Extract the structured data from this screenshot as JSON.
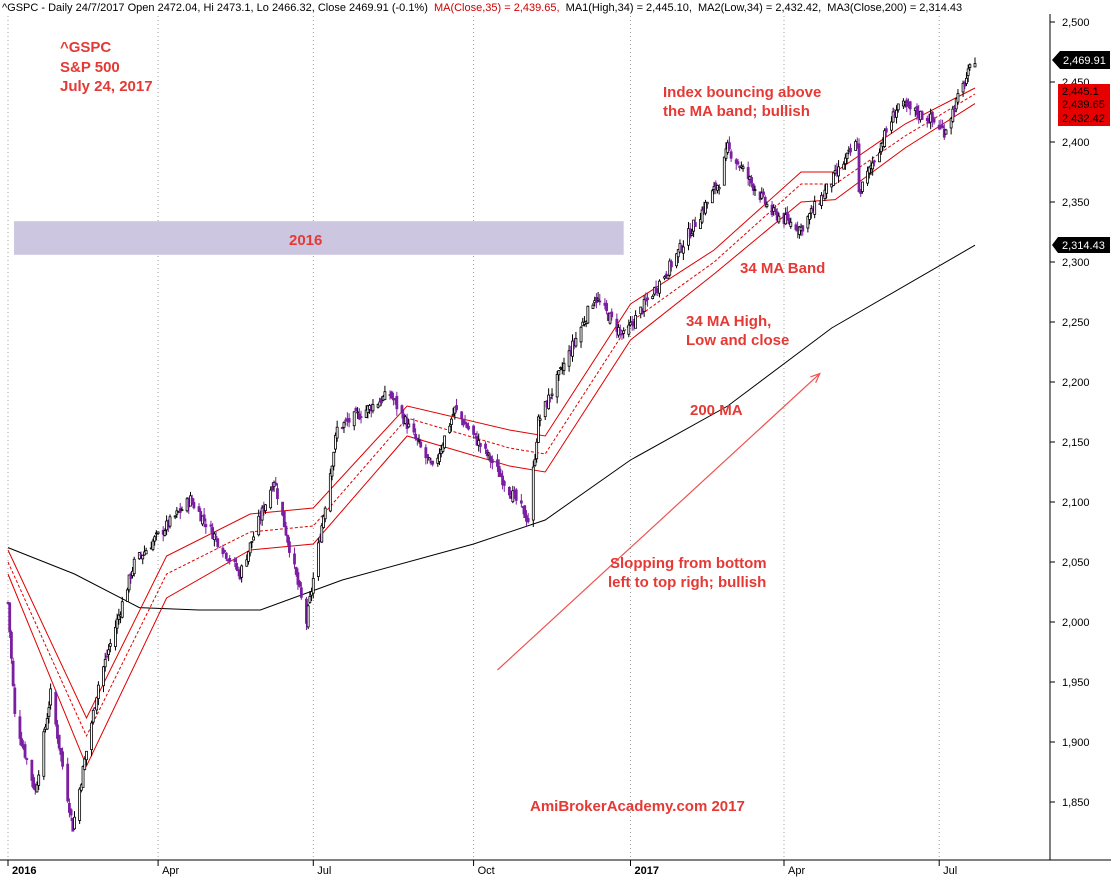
{
  "header": {
    "prefix": "^GSPC - Daily 24/7/2017 Open 2472.04, Hi 2473.1, Lo 2466.32, Close 2469.91 (-0.1%)",
    "ma": "MA(Close,35) = 2,439.65,",
    "ma1": "MA1(High,34) = 2,445.10,",
    "ma2": "MA2(Low,34) = 2,432.42,",
    "ma3": "MA3(Close,200) = 2,314.43"
  },
  "title_block": {
    "symbol": "^GSPC",
    "name": "S&P 500",
    "date": "July 24, 2017"
  },
  "annotations": {
    "bouncing_1": "Index bouncing above",
    "bouncing_2": "the MA band; bullish",
    "year_2016": "2016",
    "ma_band": "34 MA Band",
    "ma_hlc_1": "34 MA High,",
    "ma_hlc_2": "Low and close",
    "ma200": "200 MA",
    "slope_1": "Slopping from bottom",
    "slope_2": "left to top righ; bullish",
    "watermark": "AmiBrokerAcademy.com   2017"
  },
  "price_labels": {
    "last": "2,469.91",
    "high_ma": "2,445.1",
    "close_ma": "2,439.65",
    "low_ma": "2,432.42",
    "ma200": "2,314.43"
  },
  "colors": {
    "up_candle": "#000000",
    "down_candle": "#7b1fa2",
    "ma_band": "#e00000",
    "ma200": "#000000",
    "annotation": "#e53935",
    "highlight_box": "#cdc6e0",
    "price_label_red": "#e60000"
  },
  "chart_data": {
    "type": "candlestick",
    "x_ticks": [
      "2016",
      "Apr",
      "Jul",
      "Oct",
      "2017",
      "Apr",
      "Jul"
    ],
    "y_ticks": [
      "1,850",
      "1,900",
      "1,950",
      "2,000",
      "2,050",
      "2,100",
      "2,150",
      "2,200",
      "2,250",
      "2,300",
      "2,350",
      "2,400",
      "2,450",
      "2,500"
    ],
    "ylim": [
      1805,
      2510
    ],
    "x_range": [
      "2016-01-04",
      "2017-07-24"
    ],
    "grid": "vertical-dotted",
    "close_path": [
      [
        "2016-01-04",
        2016
      ],
      [
        "2016-01-08",
        1922
      ],
      [
        "2016-01-20",
        1859
      ],
      [
        "2016-01-29",
        1940
      ],
      [
        "2016-02-11",
        1829
      ],
      [
        "2016-02-26",
        1948
      ],
      [
        "2016-03-18",
        2049
      ],
      [
        "2016-04-01",
        2072
      ],
      [
        "2016-04-20",
        2102
      ],
      [
        "2016-05-19",
        2040
      ],
      [
        "2016-06-08",
        2119
      ],
      [
        "2016-06-27",
        2000
      ],
      [
        "2016-07-15",
        2161
      ],
      [
        "2016-08-15",
        2190
      ],
      [
        "2016-09-09",
        2127
      ],
      [
        "2016-09-22",
        2177
      ],
      [
        "2016-10-14",
        2133
      ],
      [
        "2016-11-04",
        2085
      ],
      [
        "2016-11-10",
        2167
      ],
      [
        "2016-12-13",
        2271
      ],
      [
        "2016-12-30",
        2238
      ],
      [
        "2017-01-26",
        2296
      ],
      [
        "2017-02-24",
        2367
      ],
      [
        "2017-03-01",
        2395
      ],
      [
        "2017-03-27",
        2341
      ],
      [
        "2017-04-13",
        2328
      ],
      [
        "2017-05-16",
        2400
      ],
      [
        "2017-05-17",
        2357
      ],
      [
        "2017-06-09",
        2431
      ],
      [
        "2017-06-28",
        2419
      ],
      [
        "2017-07-06",
        2409
      ],
      [
        "2017-07-24",
        2470
      ]
    ],
    "ma_close_35_path": [
      [
        "2016-01-04",
        2050
      ],
      [
        "2016-02-19",
        1905
      ],
      [
        "2016-04-06",
        2040
      ],
      [
        "2016-05-25",
        2075
      ],
      [
        "2016-07-01",
        2080
      ],
      [
        "2016-08-25",
        2170
      ],
      [
        "2016-10-24",
        2145
      ],
      [
        "2016-11-14",
        2140
      ],
      [
        "2017-01-03",
        2250
      ],
      [
        "2017-02-21",
        2300
      ],
      [
        "2017-04-13",
        2365
      ],
      [
        "2017-05-03",
        2365
      ],
      [
        "2017-06-13",
        2405
      ],
      [
        "2017-07-24",
        2440
      ]
    ],
    "ma_high_34_path": [
      [
        "2016-01-04",
        2060
      ],
      [
        "2016-02-19",
        1920
      ],
      [
        "2016-04-06",
        2055
      ],
      [
        "2016-05-25",
        2090
      ],
      [
        "2016-07-01",
        2095
      ],
      [
        "2016-08-25",
        2180
      ],
      [
        "2016-10-24",
        2160
      ],
      [
        "2016-11-14",
        2155
      ],
      [
        "2017-01-03",
        2265
      ],
      [
        "2017-02-21",
        2310
      ],
      [
        "2017-04-13",
        2375
      ],
      [
        "2017-05-03",
        2375
      ],
      [
        "2017-06-13",
        2415
      ],
      [
        "2017-07-24",
        2445
      ]
    ],
    "ma_low_34_path": [
      [
        "2016-01-04",
        2040
      ],
      [
        "2016-02-19",
        1880
      ],
      [
        "2016-04-06",
        2020
      ],
      [
        "2016-05-25",
        2060
      ],
      [
        "2016-07-01",
        2065
      ],
      [
        "2016-08-25",
        2155
      ],
      [
        "2016-10-24",
        2130
      ],
      [
        "2016-11-14",
        2125
      ],
      [
        "2017-01-03",
        2235
      ],
      [
        "2017-02-21",
        2290
      ],
      [
        "2017-04-13",
        2350
      ],
      [
        "2017-05-03",
        2352
      ],
      [
        "2017-06-13",
        2395
      ],
      [
        "2017-07-24",
        2432
      ]
    ],
    "ma_close_200_path": [
      [
        "2016-01-04",
        2062
      ],
      [
        "2016-02-12",
        2040
      ],
      [
        "2016-03-21",
        2012
      ],
      [
        "2016-04-25",
        2010
      ],
      [
        "2016-05-31",
        2010
      ],
      [
        "2016-07-18",
        2035
      ],
      [
        "2016-10-03",
        2065
      ],
      [
        "2016-11-14",
        2085
      ],
      [
        "2017-01-03",
        2135
      ],
      [
        "2017-03-01",
        2180
      ],
      [
        "2017-05-01",
        2245
      ],
      [
        "2017-07-24",
        2314
      ]
    ],
    "arrow": {
      "from": [
        "2016-10-17",
        1960
      ],
      "to": [
        "2017-04-24",
        2207
      ]
    },
    "highlight_2016": {
      "x": [
        "2016-01-04",
        "2016-12-30"
      ],
      "y": [
        2306,
        2334
      ]
    }
  }
}
